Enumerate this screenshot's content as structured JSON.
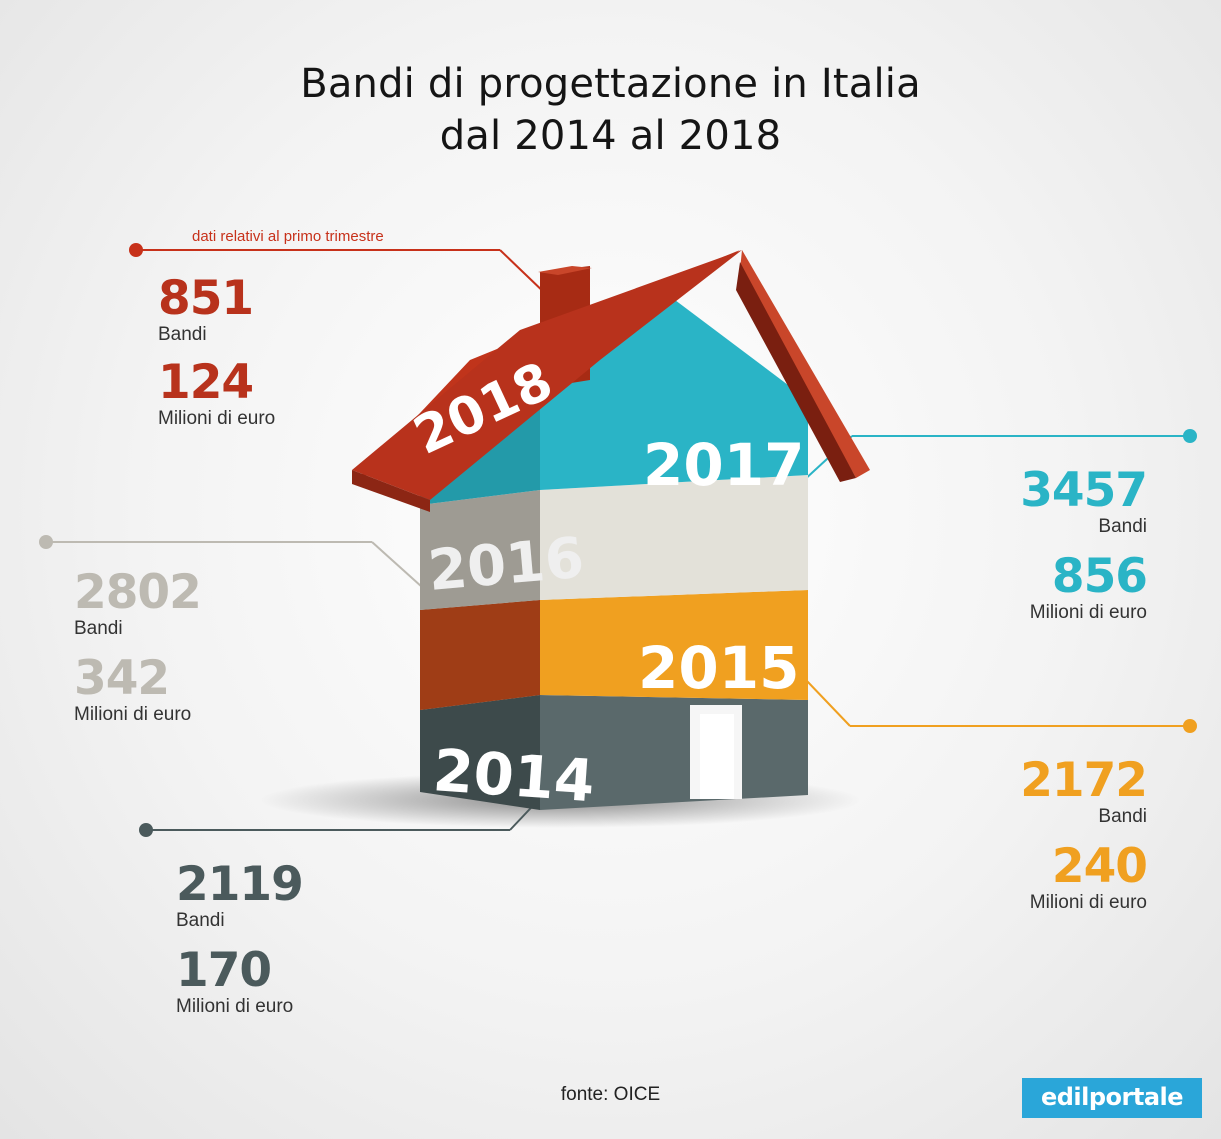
{
  "title": {
    "line1": "Bandi di progettazione in Italia",
    "line2": "dal 2014 al 2018"
  },
  "note": "dati relativi al primo trimestre",
  "colors": {
    "y2018": "#b8321c",
    "y2017": "#2ab4c6",
    "y2016": "#bdbab2",
    "y2015": "#f0a020",
    "y2014": "#4b5a5c"
  },
  "stats": {
    "y2018": {
      "bandi": "851",
      "bandi_label": "Bandi",
      "milioni": "124",
      "milioni_label": "Milioni di euro"
    },
    "y2017": {
      "bandi": "3457",
      "bandi_label": "Bandi",
      "milioni": "856",
      "milioni_label": "Milioni di euro"
    },
    "y2016": {
      "bandi": "2802",
      "bandi_label": "Bandi",
      "milioni": "342",
      "milioni_label": "Milioni di euro"
    },
    "y2015": {
      "bandi": "2172",
      "bandi_label": "Bandi",
      "milioni": "240",
      "milioni_label": "Milioni di euro"
    },
    "y2014": {
      "bandi": "2119",
      "bandi_label": "Bandi",
      "milioni": "170",
      "milioni_label": "Milioni di euro"
    }
  },
  "house_labels": {
    "y2018": "2018",
    "y2017": "2017",
    "y2016": "2016",
    "y2015": "2015",
    "y2014": "2014"
  },
  "source": "fonte: OICE",
  "logo": "edilportale"
}
